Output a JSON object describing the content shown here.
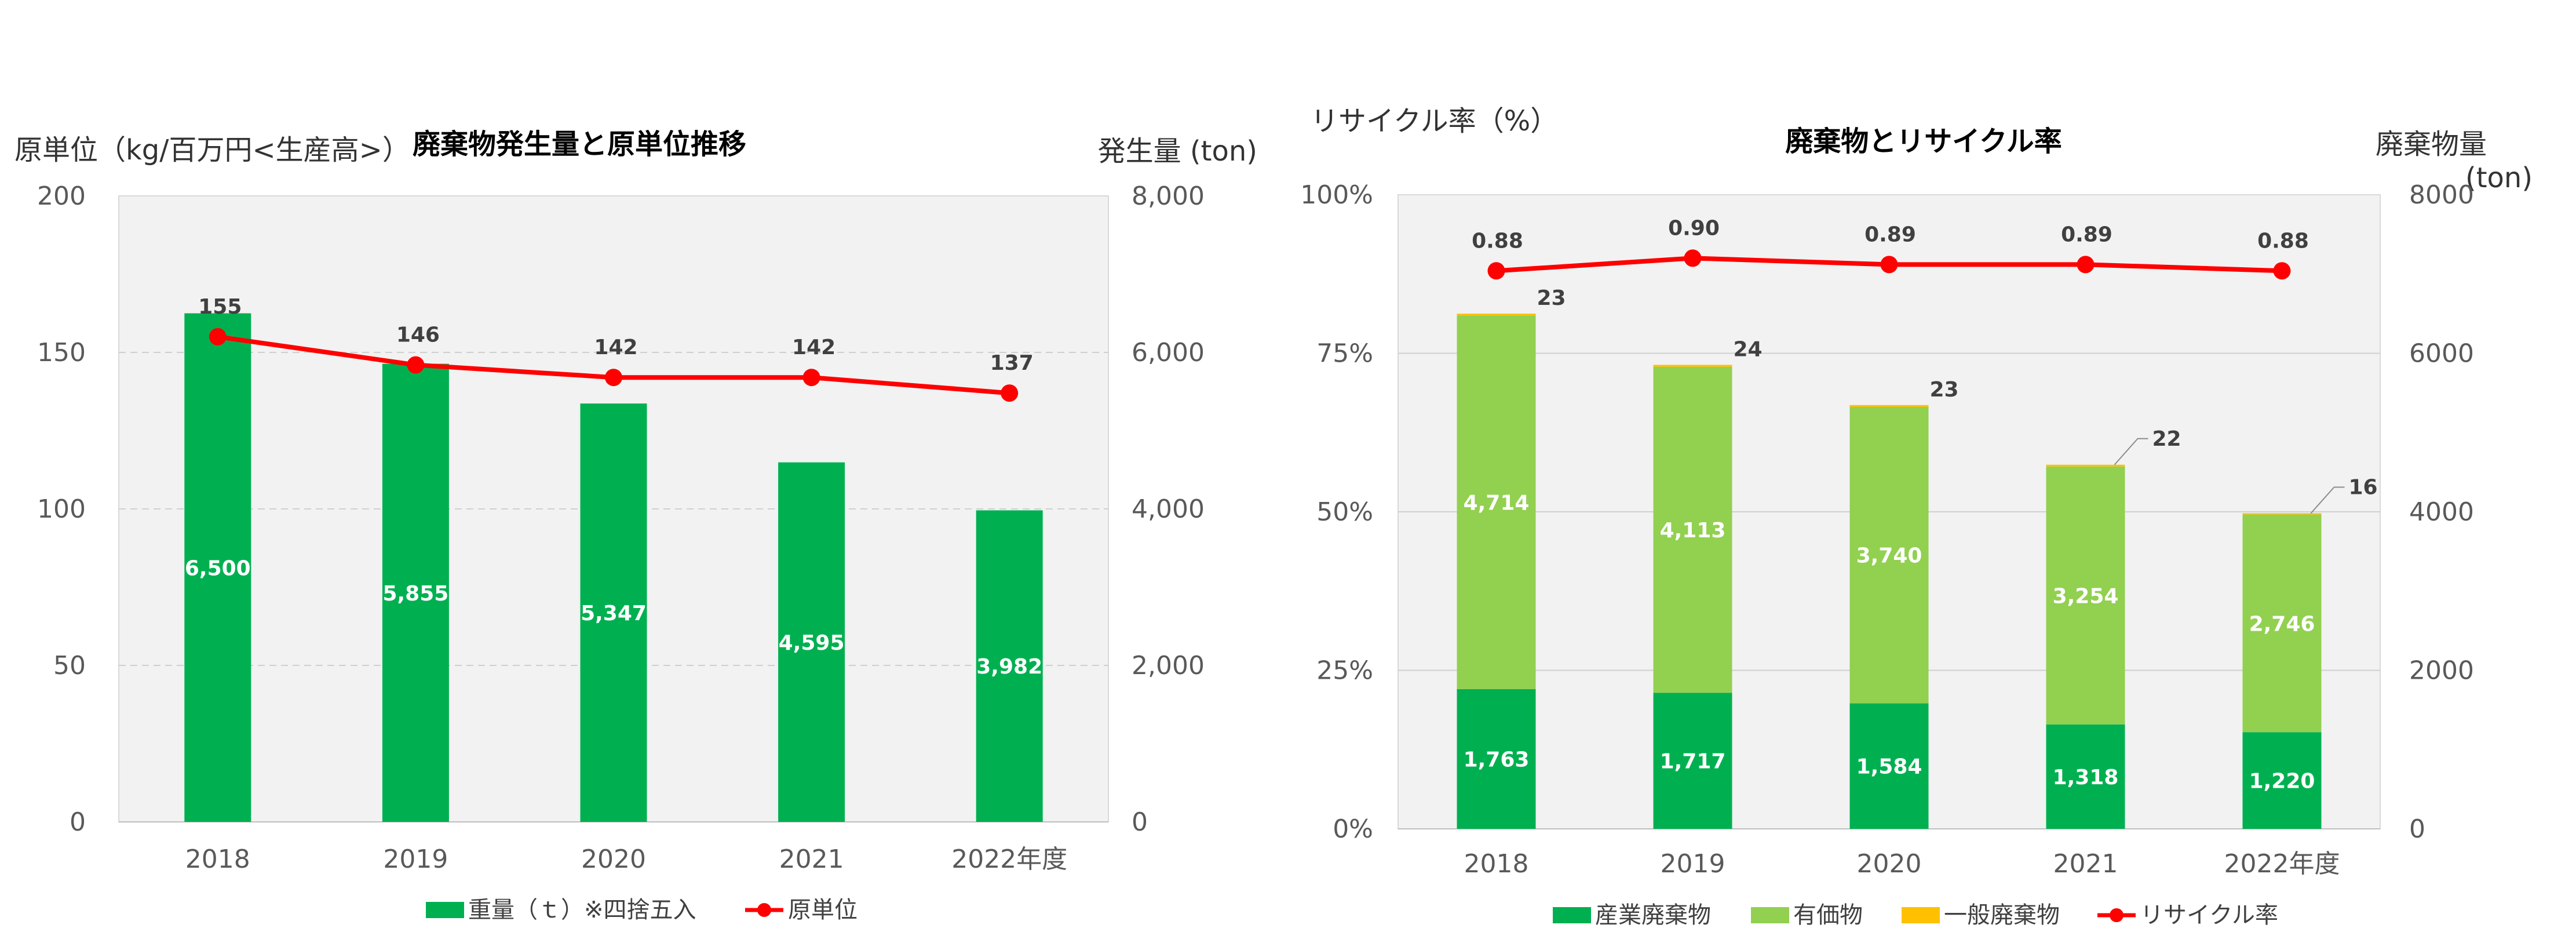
{
  "colors": {
    "bar_green": "#00b050",
    "light_green": "#92d050",
    "orange": "#ffc000",
    "line_red": "#ff0000",
    "plot_bg": "#f2f2f2"
  },
  "chart_data": [
    {
      "type": "bar",
      "title": "廃棄物発生量と原単位推移",
      "left_unit": "原単位（kg/百万円<生産高>）",
      "right_unit": "発生量 (ton)",
      "categories": [
        "2018",
        "2019",
        "2020",
        "2021",
        "2022年度"
      ],
      "series": [
        {
          "name": "重量（ｔ）※四捨五入",
          "axis": "right",
          "kind": "bar",
          "values": [
            6500,
            5855,
            5347,
            4595,
            3982
          ],
          "labels": [
            "6,500",
            "5,855",
            "5,347",
            "4,595",
            "3,982"
          ]
        },
        {
          "name": "原単位",
          "axis": "left",
          "kind": "line",
          "values": [
            155,
            146,
            142,
            142,
            137
          ],
          "labels": [
            "155",
            "146",
            "142",
            "142",
            "137"
          ]
        }
      ],
      "left_ylim": [
        0,
        200
      ],
      "left_ticks": [
        "0",
        "50",
        "100",
        "150",
        "200"
      ],
      "right_ylim": [
        0,
        8000
      ],
      "right_ticks": [
        "0",
        "2,000",
        "4,000",
        "6,000",
        "8,000"
      ],
      "grid": true,
      "legend_position": "bottom"
    },
    {
      "type": "bar",
      "stacked": true,
      "title": "廃棄物とリサイクル率",
      "left_unit": "リサイクル率（%）",
      "right_unit_line1": "廃棄物量",
      "right_unit_line2": "(ton)",
      "categories": [
        "2018",
        "2019",
        "2020",
        "2021",
        "2022年度"
      ],
      "series": [
        {
          "name": "産業廃棄物",
          "axis": "right",
          "kind": "bar",
          "values": [
            1763,
            1717,
            1584,
            1318,
            1220
          ],
          "labels": [
            "1,763",
            "1,717",
            "1,584",
            "1,318",
            "1,220"
          ]
        },
        {
          "name": "有価物",
          "axis": "right",
          "kind": "bar",
          "values": [
            4714,
            4113,
            3740,
            3254,
            2746
          ],
          "labels": [
            "4,714",
            "4,113",
            "3,740",
            "3,254",
            "2,746"
          ]
        },
        {
          "name": "一般廃棄物",
          "axis": "right",
          "kind": "bar",
          "values": [
            23,
            24,
            23,
            22,
            16
          ],
          "labels": [
            "23",
            "24",
            "23",
            "22",
            "16"
          ]
        },
        {
          "name": "リサイクル率",
          "axis": "left",
          "kind": "line",
          "values": [
            0.88,
            0.9,
            0.89,
            0.89,
            0.88
          ],
          "labels": [
            "0.88",
            "0.90",
            "0.89",
            "0.89",
            "0.88"
          ]
        }
      ],
      "left_ylim": [
        0,
        1
      ],
      "left_ticks": [
        "0%",
        "25%",
        "50%",
        "75%",
        "100%"
      ],
      "right_ylim": [
        0,
        8000
      ],
      "right_ticks": [
        "0",
        "2000",
        "4000",
        "6000",
        "8000"
      ],
      "grid": true,
      "legend_position": "bottom"
    }
  ]
}
